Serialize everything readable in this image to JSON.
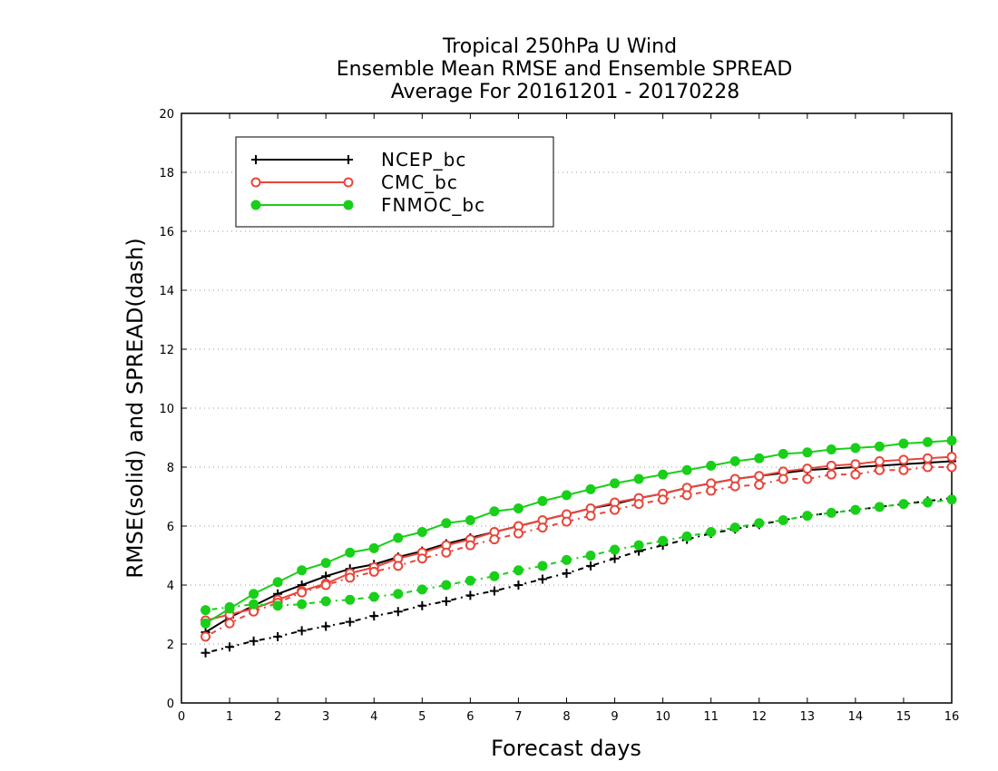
{
  "chart_data": {
    "type": "line",
    "title_lines": [
      "Tropical 250hPa U Wind",
      "Ensemble Mean RMSE and Ensemble SPREAD",
      "Average For 20161201 - 20170228"
    ],
    "xlabel": "Forecast days",
    "ylabel": "RMSE(solid) and SPREAD(dash)",
    "xlim": [
      0,
      16
    ],
    "ylim": [
      0,
      20
    ],
    "x_ticks": [
      0,
      1,
      2,
      3,
      4,
      5,
      6,
      7,
      8,
      9,
      10,
      11,
      12,
      13,
      14,
      15,
      16
    ],
    "y_ticks": [
      0,
      2,
      4,
      6,
      8,
      10,
      12,
      14,
      16,
      18,
      20
    ],
    "grid": "dotted horizontal",
    "legend_position": "top-left",
    "x": [
      0.5,
      1,
      1.5,
      2,
      2.5,
      3,
      3.5,
      4,
      4.5,
      5,
      5.5,
      6,
      6.5,
      7,
      7.5,
      8,
      8.5,
      9,
      9.5,
      10,
      10.5,
      11,
      11.5,
      12,
      12.5,
      13,
      13.5,
      14,
      14.5,
      15,
      15.5,
      16
    ],
    "series": [
      {
        "name": "NCEP_bc",
        "color": "#000000",
        "marker": "plus",
        "rmse": [
          2.4,
          2.9,
          3.3,
          3.7,
          4.0,
          4.3,
          4.55,
          4.7,
          4.95,
          5.15,
          5.4,
          5.6,
          5.8,
          6.0,
          6.2,
          6.4,
          6.6,
          6.75,
          6.95,
          7.1,
          7.3,
          7.45,
          7.6,
          7.7,
          7.8,
          7.9,
          7.95,
          8.0,
          8.05,
          8.1,
          8.15,
          8.2
        ],
        "spread": [
          1.7,
          1.9,
          2.1,
          2.25,
          2.45,
          2.6,
          2.75,
          2.95,
          3.1,
          3.3,
          3.45,
          3.65,
          3.8,
          4.0,
          4.2,
          4.4,
          4.65,
          4.9,
          5.15,
          5.35,
          5.55,
          5.75,
          5.9,
          6.05,
          6.2,
          6.35,
          6.45,
          6.55,
          6.65,
          6.75,
          6.85,
          6.95
        ]
      },
      {
        "name": "CMC_bc",
        "color": "#e8463c",
        "marker": "open-circle",
        "rmse": [
          2.8,
          3.0,
          3.2,
          3.5,
          3.8,
          4.05,
          4.4,
          4.6,
          4.9,
          5.1,
          5.35,
          5.55,
          5.8,
          6.0,
          6.2,
          6.4,
          6.6,
          6.8,
          6.95,
          7.1,
          7.3,
          7.45,
          7.6,
          7.7,
          7.85,
          7.95,
          8.05,
          8.1,
          8.2,
          8.25,
          8.3,
          8.35
        ],
        "spread": [
          2.25,
          2.7,
          3.1,
          3.4,
          3.75,
          4.0,
          4.25,
          4.45,
          4.65,
          4.9,
          5.1,
          5.35,
          5.55,
          5.75,
          5.95,
          6.15,
          6.35,
          6.55,
          6.75,
          6.9,
          7.05,
          7.2,
          7.35,
          7.4,
          7.6,
          7.6,
          7.75,
          7.75,
          7.9,
          7.9,
          8.0,
          8.0
        ]
      },
      {
        "name": "FNMOC_bc",
        "color": "#19cf19",
        "marker": "filled-circle",
        "rmse": [
          2.7,
          3.2,
          3.7,
          4.1,
          4.5,
          4.75,
          5.1,
          5.25,
          5.6,
          5.8,
          6.1,
          6.2,
          6.5,
          6.6,
          6.85,
          7.05,
          7.25,
          7.45,
          7.6,
          7.75,
          7.9,
          8.05,
          8.2,
          8.3,
          8.45,
          8.5,
          8.6,
          8.65,
          8.7,
          8.8,
          8.85,
          8.9
        ],
        "spread": [
          3.15,
          3.25,
          3.35,
          3.3,
          3.35,
          3.45,
          3.5,
          3.6,
          3.7,
          3.85,
          4.0,
          4.15,
          4.3,
          4.5,
          4.65,
          4.85,
          5.0,
          5.2,
          5.35,
          5.5,
          5.65,
          5.8,
          5.95,
          6.1,
          6.2,
          6.35,
          6.45,
          6.55,
          6.65,
          6.75,
          6.8,
          6.9
        ]
      }
    ]
  }
}
